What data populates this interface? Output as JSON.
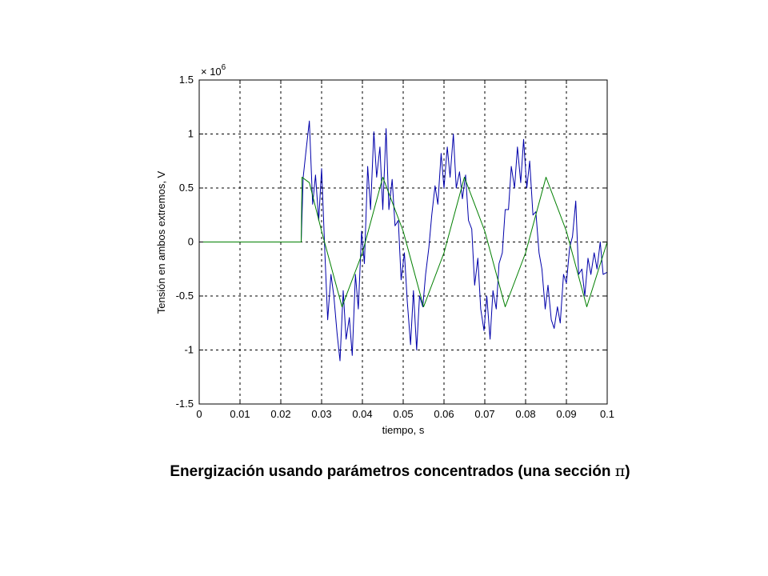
{
  "chart_data": {
    "type": "line",
    "title": "",
    "xlabel": "tiempo, s",
    "ylabel": "Tensión en ambos extremos, V",
    "scale_note": {
      "base": "× 10",
      "exponent": "6"
    },
    "xlim": [
      0,
      0.1
    ],
    "ylim": [
      -1.5,
      1.5
    ],
    "x_ticks": [
      "0",
      "0.01",
      "0.02",
      "0.03",
      "0.04",
      "0.05",
      "0.06",
      "0.07",
      "0.08",
      "0.09",
      "0.1"
    ],
    "y_ticks": [
      "1.5",
      "1",
      "0.5",
      "0",
      "-0.5",
      "-1",
      "-1.5"
    ],
    "grid": true,
    "legend": "none",
    "series": [
      {
        "color": "#0000aa",
        "x": [
          0,
          0.02,
          0.025,
          0.0255,
          0.0262,
          0.027,
          0.0278,
          0.0285,
          0.0293,
          0.03,
          0.0308,
          0.0315,
          0.0323,
          0.033,
          0.0338,
          0.0345,
          0.0353,
          0.036,
          0.0368,
          0.0375,
          0.0383,
          0.039,
          0.0398,
          0.0405,
          0.0413,
          0.042,
          0.0428,
          0.0435,
          0.0443,
          0.045,
          0.0458,
          0.0465,
          0.0473,
          0.048,
          0.0488,
          0.0495,
          0.0503,
          0.051,
          0.0518,
          0.0525,
          0.0533,
          0.054,
          0.0548,
          0.0555,
          0.0563,
          0.057,
          0.0578,
          0.0585,
          0.0593,
          0.06,
          0.0608,
          0.0615,
          0.0623,
          0.063,
          0.0638,
          0.0645,
          0.0653,
          0.066,
          0.0668,
          0.0675,
          0.0683,
          0.069,
          0.0698,
          0.0705,
          0.0713,
          0.072,
          0.0728,
          0.0735,
          0.0743,
          0.075,
          0.0758,
          0.0765,
          0.0773,
          0.078,
          0.0788,
          0.0795,
          0.0803,
          0.081,
          0.0818,
          0.0825,
          0.0833,
          0.084,
          0.0848,
          0.0855,
          0.0863,
          0.087,
          0.0878,
          0.0885,
          0.0893,
          0.09,
          0.0908,
          0.0915,
          0.0923,
          0.093,
          0.0938,
          0.0945,
          0.0953,
          0.096,
          0.0968,
          0.0975,
          0.0983,
          0.099,
          0.1
        ],
        "values": [
          0,
          0,
          0,
          0.6,
          0.85,
          1.12,
          0.35,
          0.62,
          0.2,
          0.68,
          -0.1,
          -0.72,
          -0.3,
          -0.5,
          -0.85,
          -1.1,
          -0.45,
          -0.9,
          -0.7,
          -1.05,
          -0.3,
          -0.62,
          0.1,
          -0.2,
          0.7,
          0.3,
          1.02,
          0.6,
          0.88,
          0.3,
          1.05,
          0.3,
          0.58,
          0.15,
          0.2,
          -0.35,
          -0.1,
          -0.55,
          -0.95,
          -0.45,
          -1.0,
          -0.5,
          -0.6,
          -0.3,
          -0.05,
          0.25,
          0.52,
          0.35,
          0.82,
          0.5,
          0.88,
          0.6,
          1.0,
          0.5,
          0.65,
          0.4,
          0.62,
          0.2,
          0.12,
          -0.4,
          -0.15,
          -0.62,
          -0.82,
          -0.5,
          -0.9,
          -0.45,
          -0.62,
          -0.2,
          -0.1,
          0.3,
          0.3,
          0.7,
          0.5,
          0.88,
          0.55,
          0.95,
          0.5,
          0.75,
          0.25,
          0.28,
          -0.1,
          -0.25,
          -0.62,
          -0.4,
          -0.72,
          -0.8,
          -0.6,
          -0.75,
          -0.3,
          -0.38,
          -0.05,
          0.05,
          0.38,
          -0.3,
          -0.25,
          -0.5,
          -0.15,
          -0.3,
          -0.1,
          -0.25,
          0,
          -0.3,
          -0.28
        ]
      },
      {
        "color": "#007f00",
        "x": [
          0,
          0.0245,
          0.025,
          0.0252,
          0.027,
          0.03,
          0.035,
          0.04,
          0.045,
          0.05,
          0.055,
          0.06,
          0.065,
          0.07,
          0.075,
          0.08,
          0.085,
          0.09,
          0.095,
          0.1
        ],
        "values": [
          0,
          0,
          0,
          0.6,
          0.55,
          0.1,
          -0.6,
          -0.1,
          0.6,
          0.1,
          -0.6,
          -0.1,
          0.6,
          0.1,
          -0.6,
          -0.1,
          0.6,
          0.1,
          -0.6,
          0
        ]
      }
    ]
  },
  "caption": {
    "text": "Energización usando parámetros concentrados  (una sección ",
    "symbol": "π",
    "close": ")"
  }
}
